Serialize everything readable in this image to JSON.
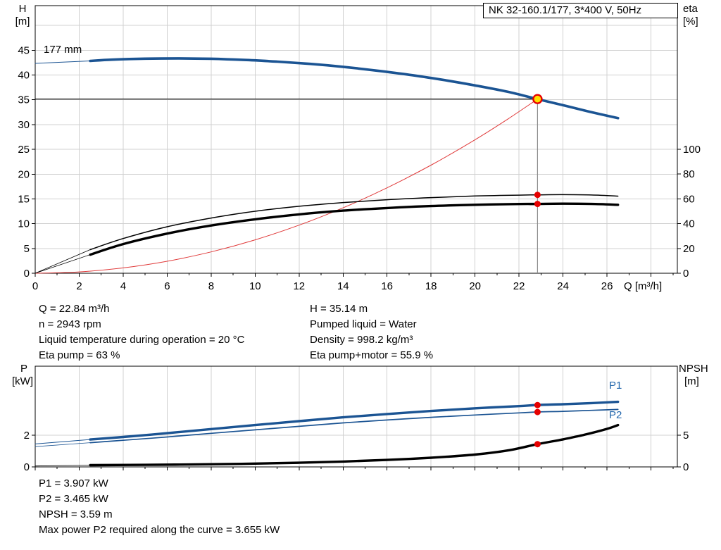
{
  "colors": {
    "curve_blue": "#1b5493",
    "label_blue": "#2367ac",
    "curve_black": "#000000",
    "system_red": "#e03a3a",
    "dot_red": "#e60000",
    "op_fill": "#ffdf00",
    "grid": "#d0d0d0",
    "crosshair": "#8c8c8c",
    "axis": "#000000"
  },
  "chart_data": [
    {
      "id": "top",
      "type": "line",
      "title": "NK 32-160.1/177, 3*400 V, 50Hz",
      "impeller_label": "177 mm",
      "x_axis": {
        "label": "Q [m³/h]",
        "min": 0,
        "max": 29.2,
        "tick_step": 2,
        "tick_label_max": 26,
        "minor_step": 1,
        "show_tick_labels": true
      },
      "y_left": {
        "name": "H",
        "unit": "[m]",
        "min": 0,
        "max": 54,
        "ticks": [
          0,
          5,
          10,
          15,
          20,
          25,
          30,
          35,
          40,
          45
        ],
        "grid_values": [
          5,
          10,
          15,
          20,
          25,
          30,
          35,
          40,
          45,
          50
        ]
      },
      "y_right": {
        "name": "eta",
        "unit": "[%]",
        "min": 0,
        "max": 215.8,
        "ticks": [
          0,
          20,
          40,
          60,
          80,
          100
        ]
      },
      "series": [
        {
          "name": "head-curve-extension",
          "axis": "left",
          "color_key": "curve_blue",
          "width": 1,
          "points": [
            [
              0,
              42.35
            ],
            [
              2.5,
              42.85
            ]
          ]
        },
        {
          "name": "system-curve",
          "axis": "left",
          "color_key": "system_red",
          "width": 1,
          "points": [
            [
              0,
              0
            ],
            [
              2,
              0.27
            ],
            [
              4,
              1.08
            ],
            [
              6,
              2.42
            ],
            [
              8,
              4.31
            ],
            [
              10,
              6.74
            ],
            [
              12,
              9.7
            ],
            [
              14,
              13.2
            ],
            [
              16,
              17.24
            ],
            [
              18,
              21.82
            ],
            [
              20,
              26.94
            ],
            [
              21.5,
              31.14
            ],
            [
              22.84,
              35.14
            ]
          ]
        },
        {
          "name": "eta-pump-extension",
          "axis": "right",
          "color_key": "curve_black",
          "width": 0.8,
          "points": [
            [
              0,
              0
            ],
            [
              2.5,
              19
            ]
          ]
        },
        {
          "name": "eta-pump-motor-extension",
          "axis": "right",
          "color_key": "curve_black",
          "width": 0.8,
          "points": [
            [
              0,
              0
            ],
            [
              2.5,
              15
            ]
          ]
        },
        {
          "name": "eta-pump-curve",
          "axis": "right",
          "color_key": "curve_black",
          "width": 1.5,
          "points": [
            [
              2.5,
              19
            ],
            [
              4,
              28
            ],
            [
              6,
              37.5
            ],
            [
              8,
              44.5
            ],
            [
              10,
              50
            ],
            [
              12,
              54
            ],
            [
              14,
              57
            ],
            [
              16,
              59.3
            ],
            [
              18,
              61
            ],
            [
              20,
              62.3
            ],
            [
              22,
              63
            ],
            [
              22.84,
              63.2
            ],
            [
              24,
              63.4
            ],
            [
              25.3,
              63.1
            ],
            [
              26.5,
              62.2
            ]
          ]
        },
        {
          "name": "eta-pump-motor-curve",
          "axis": "right",
          "color_key": "curve_black",
          "width": 3.4,
          "points": [
            [
              2.5,
              15
            ],
            [
              4,
              23.5
            ],
            [
              6,
              32
            ],
            [
              8,
              38.5
            ],
            [
              10,
              43.5
            ],
            [
              12,
              47.5
            ],
            [
              14,
              50.5
            ],
            [
              16,
              52.6
            ],
            [
              18,
              54.2
            ],
            [
              20,
              55.2
            ],
            [
              22,
              55.8
            ],
            [
              22.84,
              55.9
            ],
            [
              24,
              56.1
            ],
            [
              25.3,
              55.9
            ],
            [
              26.5,
              55.2
            ]
          ]
        },
        {
          "name": "head-curve",
          "axis": "left",
          "color_key": "curve_blue",
          "width": 3.6,
          "points": [
            [
              2.5,
              42.85
            ],
            [
              3.5,
              43.1
            ],
            [
              5,
              43.3
            ],
            [
              6.5,
              43.35
            ],
            [
              8,
              43.28
            ],
            [
              9.5,
              43.05
            ],
            [
              11,
              42.7
            ],
            [
              12.5,
              42.25
            ],
            [
              14,
              41.65
            ],
            [
              15.5,
              40.9
            ],
            [
              17,
              40.05
            ],
            [
              18.5,
              39.05
            ],
            [
              20,
              37.9
            ],
            [
              21.5,
              36.6
            ],
            [
              22.84,
              35.14
            ],
            [
              24,
              33.9
            ],
            [
              25.2,
              32.6
            ],
            [
              26.5,
              31.3
            ]
          ]
        }
      ],
      "markers": [
        {
          "name": "eta-pump-duty-dot",
          "q": 22.84,
          "v": 63.2,
          "axis": "right",
          "style": "dot"
        },
        {
          "name": "eta-pump-motor-duty-dot",
          "q": 22.84,
          "v": 55.9,
          "axis": "right",
          "style": "dot"
        },
        {
          "name": "duty-point",
          "q": 22.84,
          "v": 35.14,
          "axis": "left",
          "style": "op"
        }
      ],
      "crosshair": {
        "q": 22.84,
        "v": 35.14
      }
    },
    {
      "id": "bottom",
      "type": "line",
      "x_axis": {
        "label": "",
        "min": 0,
        "max": 29.2,
        "tick_step": 2,
        "tick_label_max": 26,
        "minor_step": 1,
        "show_tick_labels": false
      },
      "y_left": {
        "name": "P",
        "unit": "[kW]",
        "min": 0,
        "max": 6.36,
        "ticks": [
          0,
          2
        ],
        "grid_values": [
          2
        ]
      },
      "y_right": {
        "name": "NPSH",
        "unit": "[m]",
        "min": 0,
        "max": 15.9,
        "ticks": [
          0,
          5
        ]
      },
      "series_labels": {
        "p1": "P1",
        "p2": "P2"
      },
      "series": [
        {
          "name": "p1-extension",
          "axis": "left",
          "color_key": "curve_blue",
          "width": 1,
          "points": [
            [
              0,
              1.45
            ],
            [
              2.5,
              1.73
            ]
          ]
        },
        {
          "name": "p2-extension",
          "axis": "left",
          "color_key": "curve_blue",
          "width": 0.8,
          "points": [
            [
              0,
              1.28
            ],
            [
              2.5,
              1.53
            ]
          ]
        },
        {
          "name": "npsh-extension",
          "axis": "right",
          "color_key": "curve_black",
          "width": 0.8,
          "points": [
            [
              0,
              0.15
            ],
            [
              2.5,
              0.28
            ]
          ]
        },
        {
          "name": "p1-curve",
          "axis": "left",
          "color_key": "curve_blue",
          "width": 3.4,
          "points": [
            [
              2.5,
              1.73
            ],
            [
              4,
              1.89
            ],
            [
              6,
              2.13
            ],
            [
              8,
              2.39
            ],
            [
              10,
              2.64
            ],
            [
              12,
              2.89
            ],
            [
              14,
              3.13
            ],
            [
              16,
              3.34
            ],
            [
              18,
              3.53
            ],
            [
              20,
              3.7
            ],
            [
              22,
              3.84
            ],
            [
              22.84,
              3.91
            ],
            [
              24,
              3.96
            ],
            [
              25.3,
              4.03
            ],
            [
              26.5,
              4.11
            ]
          ]
        },
        {
          "name": "p2-curve",
          "axis": "left",
          "color_key": "curve_blue",
          "width": 1.7,
          "points": [
            [
              2.5,
              1.53
            ],
            [
              4,
              1.68
            ],
            [
              6,
              1.89
            ],
            [
              8,
              2.12
            ],
            [
              10,
              2.34
            ],
            [
              12,
              2.56
            ],
            [
              14,
              2.78
            ],
            [
              16,
              2.96
            ],
            [
              18,
              3.13
            ],
            [
              20,
              3.28
            ],
            [
              22,
              3.41
            ],
            [
              22.84,
              3.47
            ],
            [
              24,
              3.51
            ],
            [
              25.3,
              3.57
            ],
            [
              26.5,
              3.63
            ]
          ]
        },
        {
          "name": "npsh-curve",
          "axis": "right",
          "color_key": "curve_black",
          "width": 3.4,
          "points": [
            [
              2.5,
              0.28
            ],
            [
              5,
              0.32
            ],
            [
              8,
              0.42
            ],
            [
              10,
              0.52
            ],
            [
              12,
              0.66
            ],
            [
              14,
              0.85
            ],
            [
              16,
              1.1
            ],
            [
              18,
              1.45
            ],
            [
              20,
              1.95
            ],
            [
              21.5,
              2.6
            ],
            [
              22.84,
              3.59
            ],
            [
              24,
              4.35
            ],
            [
              25,
              5.1
            ],
            [
              26,
              6.0
            ],
            [
              26.5,
              6.6
            ]
          ]
        }
      ],
      "markers": [
        {
          "name": "p1-duty-dot",
          "q": 22.84,
          "v": 3.907,
          "axis": "left",
          "style": "dot"
        },
        {
          "name": "p2-duty-dot",
          "q": 22.84,
          "v": 3.465,
          "axis": "left",
          "style": "dot"
        },
        {
          "name": "npsh-duty-dot",
          "q": 22.84,
          "v": 3.59,
          "axis": "right",
          "style": "dot"
        }
      ]
    }
  ],
  "info_top_left": [
    "Q = 22.84 m³/h",
    "n = 2943 rpm",
    "Liquid temperature during operation = 20 °C",
    "Eta pump = 63 %"
  ],
  "info_top_right": [
    "H = 35.14 m",
    "Pumped liquid = Water",
    "Density = 998.2 kg/m³",
    "Eta pump+motor = 55.9 %"
  ],
  "info_bottom": [
    "P1 = 3.907 kW",
    "P2 = 3.465 kW",
    "NPSH = 3.59 m",
    "Max power P2 required along the curve = 3.655 kW"
  ]
}
